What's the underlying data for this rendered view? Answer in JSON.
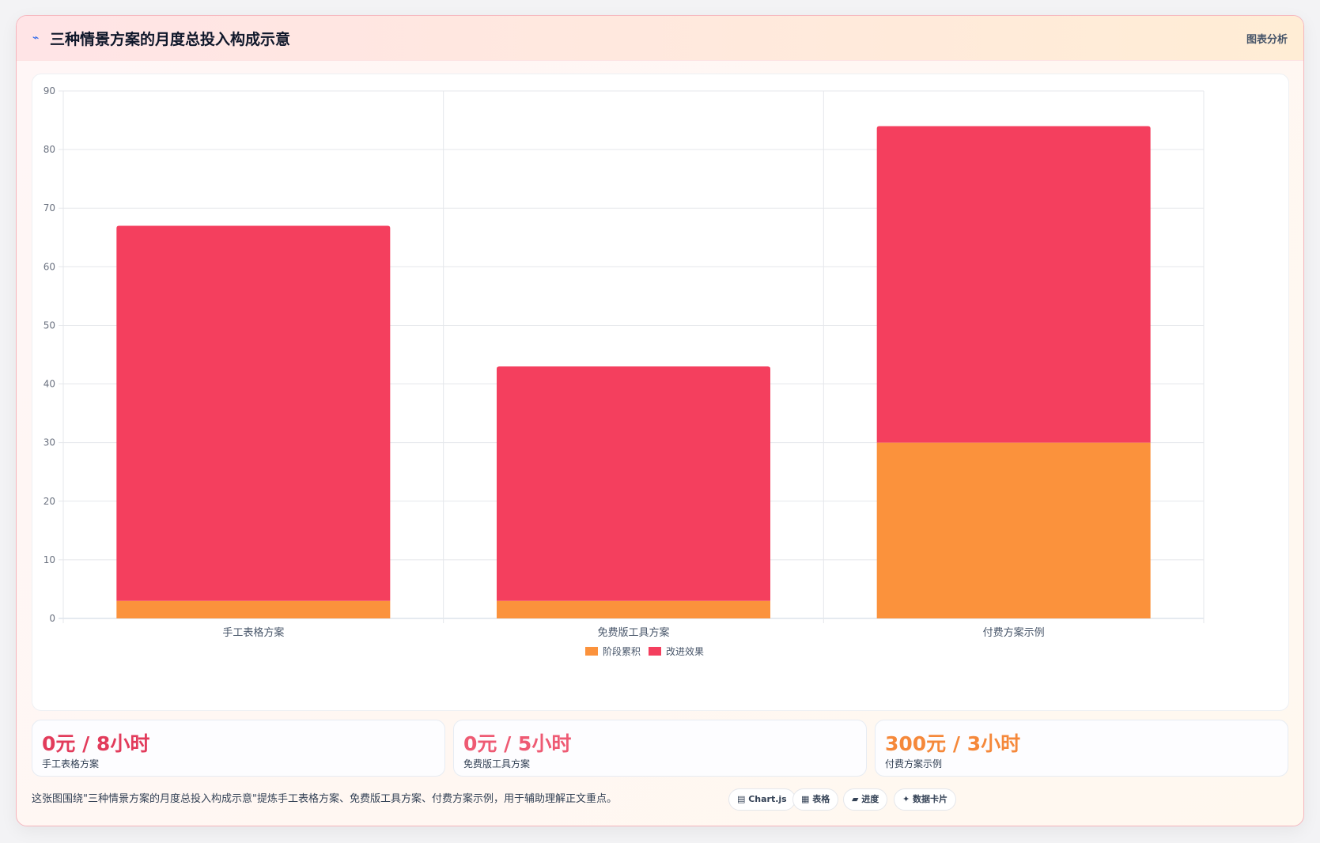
{
  "header": {
    "icon": "chart-icon",
    "title": "三种情景方案的月度总投入构成示意",
    "tag": "图表分析"
  },
  "chart_data": {
    "type": "bar",
    "stacked": true,
    "categories": [
      "手工表格方案",
      "免费版工具方案",
      "付费方案示例"
    ],
    "series": [
      {
        "name": "阶段累积",
        "color": "#fb923c",
        "values": [
          3,
          3,
          30
        ]
      },
      {
        "name": "改进效果",
        "color": "#f43f5e",
        "values": [
          64,
          40,
          54
        ]
      }
    ],
    "ylim": [
      0,
      90
    ],
    "yticks": [
      0,
      10,
      20,
      30,
      40,
      50,
      60,
      70,
      80,
      90
    ],
    "grid": true,
    "legend": "bottom"
  },
  "stats": [
    {
      "value": "0元 / 8小时",
      "label": "手工表格方案",
      "color": "#e23b5b"
    },
    {
      "value": "0元 / 5小时",
      "label": "免费版工具方案",
      "color": "#ee5a73"
    },
    {
      "value": "300元 / 3小时",
      "label": "付费方案示例",
      "color": "#f5883a"
    }
  ],
  "footer": {
    "text": "这张图围绕\"三种情景方案的月度总投入构成示意\"提炼手工表格方案、免费版工具方案、付费方案示例，用于辅助理解正文重点。",
    "chips": [
      "▤ Chart.js",
      "▦ 表格",
      "▰ 进度",
      "✦ 数据卡片"
    ]
  }
}
